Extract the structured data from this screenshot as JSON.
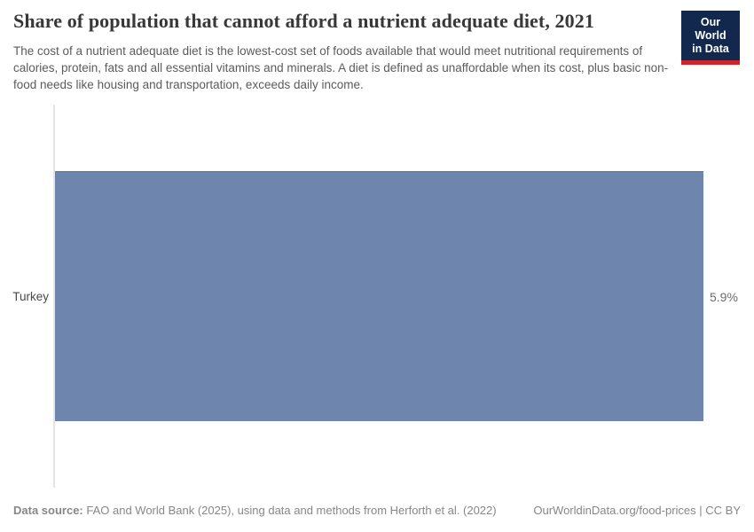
{
  "header": {
    "title": "Share of population that cannot afford a nutrient adequate diet, 2021",
    "subtitle": "The cost of a nutrient adequate diet is the lowest-cost set of foods available that would meet nutritional requirements of calories, protein, fats and all essential vitamins and minerals. A diet is defined as unaffordable when its cost, plus basic non-food needs like housing and transportation, exceeds daily income.",
    "logo": {
      "line1": "Our World",
      "line2": "in Data",
      "bg_color": "#12294d",
      "accent_color": "#d0232e"
    }
  },
  "chart_data": {
    "type": "bar",
    "orientation": "horizontal",
    "title": "Share of population that cannot afford a nutrient adequate diet, 2021",
    "categories": [
      "Turkey"
    ],
    "values": [
      5.9
    ],
    "value_labels": [
      "5.9%"
    ],
    "xlim": [
      0,
      5.9
    ],
    "xlabel": "",
    "ylabel": "",
    "grid": false,
    "legend": "none",
    "bar_color": "#6e85ad",
    "axis_color": "#e4e4e4"
  },
  "footer": {
    "datasource_label": "Data source:",
    "datasource_text": " FAO and World Bank (2025), using data and methods from Herforth et al. (2022)",
    "link_text": "OurWorldinData.org/food-prices | CC BY"
  }
}
